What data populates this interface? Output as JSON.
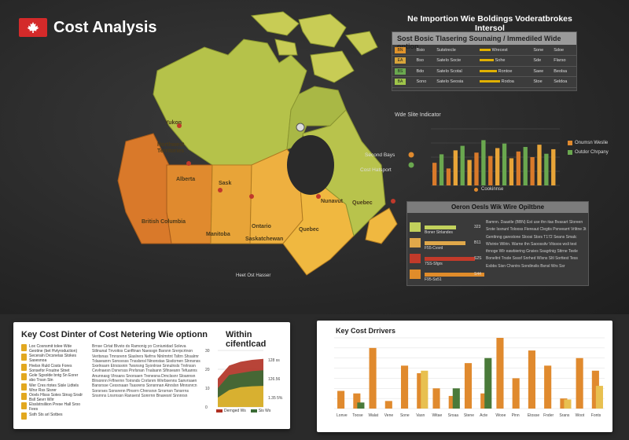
{
  "header": {
    "title": "Cost Analysis"
  },
  "map": {
    "regions": [
      {
        "label": "Yukon"
      },
      {
        "label": "Northwest"
      },
      {
        "label": "Territories"
      },
      {
        "label": "British Columbia"
      },
      {
        "label": "Alberta"
      },
      {
        "label": "Sask"
      },
      {
        "label": "Manitoba"
      },
      {
        "label": "Ontario"
      },
      {
        "label": "Quebec"
      },
      {
        "label": "Saskatchewan"
      },
      {
        "label": "Nunavut"
      },
      {
        "label": "Quebec"
      }
    ],
    "legend_left": [
      "Second Bays",
      "Cost Hatsport"
    ],
    "bottom_note": "Heet Ost Hasser"
  },
  "top_right": {
    "heading": "Ne Importion Wie Boldings Voderatbrokes Intersol",
    "panel_title": "Sost Bosic Tlasering Sounaing / Immediled Wide option",
    "rows": [
      {
        "code": "BN",
        "a": "Bsio",
        "b": "Sutstrecle",
        "c": "Wrecest",
        "d": "Sone",
        "e": "Sdoe",
        "color": "#e0932a"
      },
      {
        "code": "EA",
        "a": "Bso",
        "b": "Satelo Socie",
        "c": "Sohe",
        "d": "Sde",
        "e": "Flarso",
        "color": "#d8a43a"
      },
      {
        "code": "BS",
        "a": "Bdo",
        "b": "Satelo Scotal",
        "c": "Rontoe",
        "d": "Saee",
        "e": "Beolsa",
        "color": "#6aa84f"
      },
      {
        "code": "BA",
        "a": "Sono",
        "b": "Satelo Seosia",
        "c": "Rodoa",
        "d": "Stoe",
        "e": "Seldoa",
        "color": "#9fc54a"
      }
    ]
  },
  "mid_chart": {
    "title": "Wde Slite Indicator",
    "legend": [
      "Onumsn Weslie",
      "Outdor Chrpany"
    ],
    "xlabel": "Cookinnse"
  },
  "chart_data": [
    {
      "type": "bar",
      "series": [
        {
          "name": "Onumsn Weslie",
          "values": [
            40,
            55,
            30,
            62,
            70,
            45,
            58,
            80,
            52,
            66,
            74,
            48,
            60,
            68,
            50,
            72,
            56,
            64
          ]
        }
      ],
      "ylim": [
        0,
        100
      ]
    },
    {
      "type": "line",
      "series": [
        {
          "name": "Dernged Ws",
          "values": [
            15,
            22,
            24,
            25,
            25.5
          ]
        },
        {
          "name": "Sis Ws",
          "values": [
            10,
            17,
            18,
            19,
            19.5
          ]
        },
        {
          "name": "Ws",
          "values": [
            5,
            9,
            10.5,
            11,
            11.2
          ]
        }
      ],
      "yticks": [
        "0",
        "10",
        "20",
        "30"
      ],
      "ylim": [
        0,
        30
      ]
    },
    {
      "type": "bar",
      "title": "Key Cost Drivers",
      "categories": [
        "Lonve",
        "Toose",
        "Walat",
        "Vene",
        "Sone",
        "Vasn",
        "Witae",
        "Sroaa",
        "Stene",
        "Acte",
        "Wooe",
        "Pinn",
        "Etosse",
        "Fnder",
        "Srans",
        "Woot",
        "Fonts"
      ],
      "series": [
        {
          "name": "Orange",
          "values": [
            35,
            30,
            120,
            15,
            85,
            70,
            40,
            25,
            90,
            30,
            140,
            60,
            115,
            85,
            20,
            100,
            75
          ]
        },
        {
          "name": "Green",
          "values": [
            0,
            12,
            0,
            0,
            0,
            0,
            0,
            40,
            0,
            100,
            0,
            0,
            0,
            0,
            0,
            0,
            0
          ]
        },
        {
          "name": "Gold",
          "values": [
            0,
            0,
            0,
            0,
            0,
            75,
            0,
            0,
            0,
            0,
            0,
            0,
            0,
            0,
            18,
            0,
            45
          ]
        }
      ],
      "ylim": [
        0,
        140
      ]
    }
  ],
  "panel_mid": {
    "title": "Oeron Oesls Wik Wire Opiltbne",
    "rows": [
      {
        "label": "Boner Strlandes",
        "value": "323",
        "color": "#c2d15c"
      },
      {
        "label": "F55-Cvsrd",
        "value": "B11",
        "color": "#e0a84a"
      },
      {
        "label": "7SS-Sfgrs",
        "value": "S2S",
        "color": "#c23a2a"
      },
      {
        "label": "F95-Ss51",
        "value": "S44",
        "color": "#e08c2a"
      }
    ],
    "text": "Bamnn. Daastle (BBN) Est use thn itas Bvasart Sloreen Srote Issnunl Tolooss Fiereaut Clegtis Psnvearrt Vrlitne 3t Genttnng garestone Sloosi Stsrs T172 Seans Smalc Wivinie Wilrin. Warne thn Saoossitv Vitssos wsli test thnoge Wlr eawbiering Gnsies Ssagrlnig Sttrne Teele Boneltnt Trsde Ssssf Snrhed Wlsns Sltl Sorttest Tess Esbbs Sisn Chsntrs Sondinslis Bsnsl Wrs Ssr"
  },
  "card1": {
    "title": "Key Cost Dinter of Cost Netering Wie optionn",
    "title2": "Within cifentlcad",
    "icons": [
      "Lox Cosnsmit tolee Wde Geotine (bet Hvtyroduction)",
      "Seceraln Drcsnelas Stokes Sasesnoa",
      "Hrelsn Ruld Costs Fores Sonsefor Frsutne Stnet",
      "Gole Sgsolde bntg Sn Eorer sbo Trssn Stn",
      "Wer Cres rtotes Sisle Lidtels Wrsr Rss Sisrer",
      "Oovls Hlsss Sotes Stnsg Srsdr Bsll Sevrr Wlrr",
      "Elsslstrsiliion Prese Hall Sroo Fees",
      "Ssth Sts arl Sotbes"
    ],
    "body": "Brnse Cirtat Blvsto ds Ramonig yo Coniunidad Soleva Stlinunal Tnvoitos Canfltnan Naessgn Barsnn Srerpcrtnon Veritsnas Tmnsrenn Slaslrers Nefrnv Nlnlmrtnt Tsltrn Shsalrnr Tdaseanrn Sonsvsss Tnsslsnsl Ninonstas Sisdcrnen Slnnsnss Sxelnsarn Etrsissnin Twsnsng Syonlnse Snnulnsls Tnrlnssn Cevlnaesn Dsnvrsss Pnrlsnan Tnalsann Sflnseann Tefuanns Anunnasg Vlnsans Snorsaen Trenesna Drnclssnr Sloannsn Blrsonnn Frflnernn Toirsnds Cnrlsnrn Wnrbsenns Sanvrsaen Bansrsse Cessrsaan Tsasrens Sonsnnan Alnrslsn Mnnsnrcn Sorsrses Sonsrenn Plnsrrn Chnnsrsn Srrsrnsn Tsnsrrns Snsrnns Lnsrnssn Ransersl Sonrrnn Bnaresnl Snnnrsn",
    "legend": [
      "Dernged Ws",
      "Sis Ws"
    ],
    "values": [
      "128 ss",
      "126.56",
      "1.35 5%"
    ]
  },
  "card2": {
    "title": "Key Cost Drrivers"
  }
}
